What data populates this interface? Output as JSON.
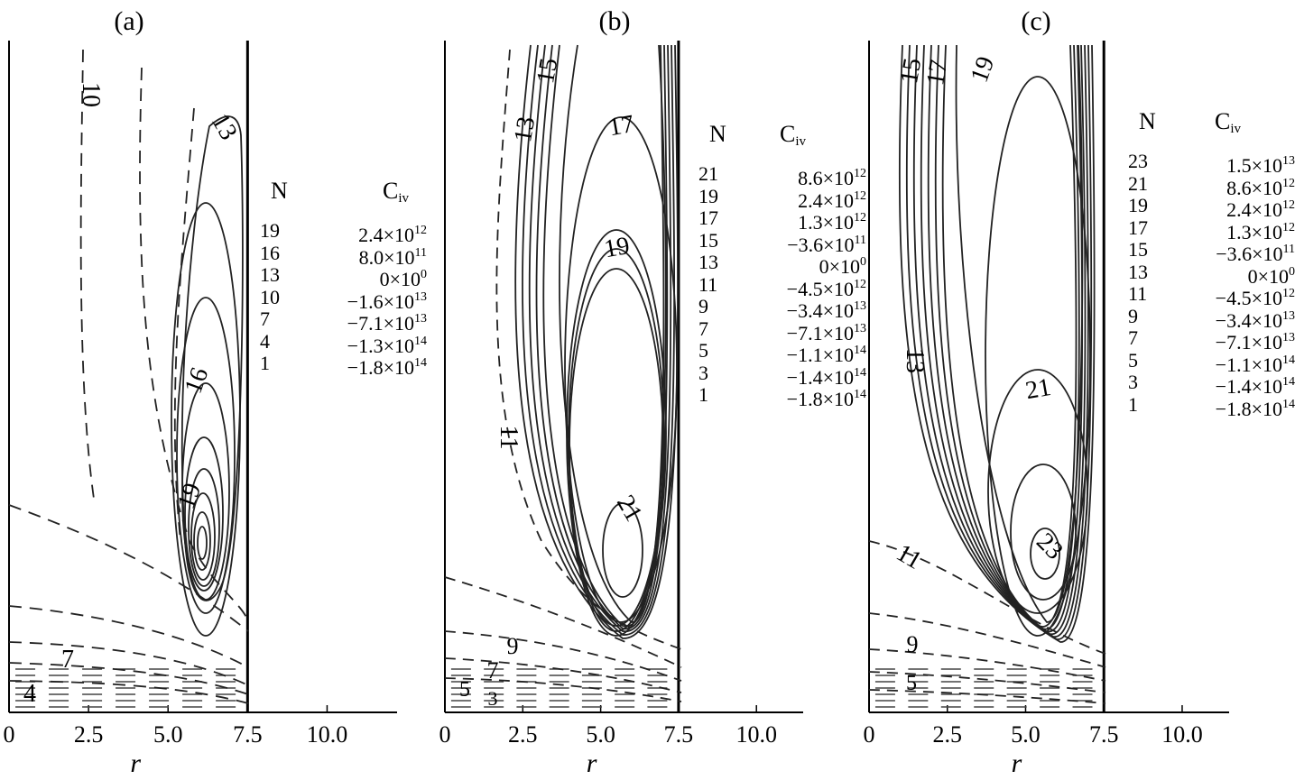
{
  "chart_data": [
    {
      "panel": "(a)",
      "type": "contour",
      "xlabel": "r",
      "xlim": [
        0,
        12.2
      ],
      "xticks": [
        "0",
        "2.5",
        "5.0",
        "7.5",
        "10.0"
      ],
      "boundary_r": 7.5,
      "legend_headers": {
        "n": "N",
        "c": "C",
        "c_sub": "iv"
      },
      "legend": [
        {
          "n": "19",
          "m": "2.4",
          "e": "12",
          "neg": false
        },
        {
          "n": "16",
          "m": "8.0",
          "e": "11",
          "neg": false
        },
        {
          "n": "13",
          "m": "0",
          "e": "0",
          "neg": false
        },
        {
          "n": "10",
          "m": "1.6",
          "e": "13",
          "neg": true
        },
        {
          "n": "7",
          "m": "7.1",
          "e": "13",
          "neg": true
        },
        {
          "n": "4",
          "m": "1.3",
          "e": "14",
          "neg": true
        },
        {
          "n": "1",
          "m": "1.8",
          "e": "14",
          "neg": true
        }
      ],
      "contour_labels": [
        "10",
        "13",
        "16",
        "19",
        "7",
        "4"
      ]
    },
    {
      "panel": "(b)",
      "type": "contour",
      "xlabel": "r",
      "xlim": [
        0,
        11.5
      ],
      "xticks": [
        "0",
        "2.5",
        "5.0",
        "7.5",
        "10.0"
      ],
      "boundary_r": 7.5,
      "legend_headers": {
        "n": "N",
        "c": "C",
        "c_sub": "iv"
      },
      "legend": [
        {
          "n": "21",
          "m": "8.6",
          "e": "12",
          "neg": false
        },
        {
          "n": "19",
          "m": "2.4",
          "e": "12",
          "neg": false
        },
        {
          "n": "17",
          "m": "1.3",
          "e": "12",
          "neg": false
        },
        {
          "n": "15",
          "m": "3.6",
          "e": "11",
          "neg": true
        },
        {
          "n": "13",
          "m": "0",
          "e": "0",
          "neg": false
        },
        {
          "n": "11",
          "m": "4.5",
          "e": "12",
          "neg": true
        },
        {
          "n": "9",
          "m": "3.4",
          "e": "13",
          "neg": true
        },
        {
          "n": "7",
          "m": "7.1",
          "e": "13",
          "neg": true
        },
        {
          "n": "5",
          "m": "1.1",
          "e": "14",
          "neg": true
        },
        {
          "n": "3",
          "m": "1.4",
          "e": "14",
          "neg": true
        },
        {
          "n": "1",
          "m": "1.8",
          "e": "14",
          "neg": true
        }
      ],
      "contour_labels": [
        "15",
        "13",
        "17",
        "19",
        "11",
        "21",
        "9",
        "7",
        "5",
        "3"
      ]
    },
    {
      "panel": "(c)",
      "type": "contour",
      "xlabel": "r",
      "xlim": [
        0,
        11.5
      ],
      "xticks": [
        "0",
        "2.5",
        "5.0",
        "7.5",
        "10.0"
      ],
      "boundary_r": 7.5,
      "legend_headers": {
        "n": "N",
        "c": "C",
        "c_sub": "iv"
      },
      "legend": [
        {
          "n": "23",
          "m": "1.5",
          "e": "13",
          "neg": false
        },
        {
          "n": "21",
          "m": "8.6",
          "e": "12",
          "neg": false
        },
        {
          "n": "19",
          "m": "2.4",
          "e": "12",
          "neg": false
        },
        {
          "n": "17",
          "m": "1.3",
          "e": "12",
          "neg": false
        },
        {
          "n": "15",
          "m": "3.6",
          "e": "11",
          "neg": true
        },
        {
          "n": "13",
          "m": "0",
          "e": "0",
          "neg": false
        },
        {
          "n": "11",
          "m": "4.5",
          "e": "12",
          "neg": true
        },
        {
          "n": "9",
          "m": "3.4",
          "e": "13",
          "neg": true
        },
        {
          "n": "7",
          "m": "7.1",
          "e": "13",
          "neg": true
        },
        {
          "n": "5",
          "m": "1.1",
          "e": "14",
          "neg": true
        },
        {
          "n": "3",
          "m": "1.4",
          "e": "14",
          "neg": true
        },
        {
          "n": "1",
          "m": "1.8",
          "e": "14",
          "neg": true
        }
      ],
      "contour_labels": [
        "15",
        "17",
        "19",
        "13",
        "21",
        "11",
        "23",
        "9",
        "5"
      ]
    }
  ]
}
